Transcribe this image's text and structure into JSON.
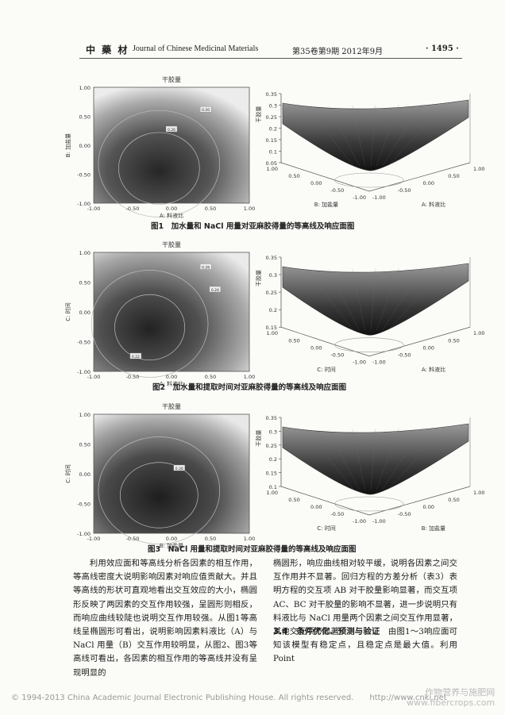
{
  "header": {
    "logo": "中 藥 材",
    "journal": "Journal of Chinese Medicinal Materials",
    "volume": "第35卷第9期 2012年9月",
    "page": "· 1495 ·"
  },
  "figures": [
    {
      "contour_title": "干胶量",
      "contour_xlabel": "A: 料液比",
      "contour_ylabel": "B: 加盐量",
      "contour_xticks": [
        "-1.00",
        "-0.50",
        "0.00",
        "0.50",
        "1.00"
      ],
      "contour_yticks": [
        "1.00",
        "0.50",
        "0.00",
        "-0.50",
        "-1.00"
      ],
      "contour_labels": [
        "0.26",
        "0.20"
      ],
      "surface_zlabel": "干胶量",
      "surface_zticks": [
        "0.35",
        "0.3",
        "0.25",
        "0.2",
        "0.15",
        "0.1",
        "0.05"
      ],
      "surface_left_axis": "B: 加盐量",
      "surface_right_axis": "A: 料液比",
      "surface_left_ticks": [
        "1.00",
        "0.50",
        "0.00",
        "-0.50",
        "-1.00"
      ],
      "surface_right_ticks": [
        "-1.00",
        "-0.50",
        "0.00",
        "0.50",
        "1.00"
      ],
      "caption": "图1　加水量和 NaCl 用量对亚麻胶得量的等高线及响应面图"
    },
    {
      "contour_title": "干胶量",
      "contour_xlabel": "A: 料液比",
      "contour_ylabel": "C: 时间",
      "contour_xticks": [
        "-1.00",
        "-0.50",
        "0.00",
        "0.50",
        "1.00"
      ],
      "contour_yticks": [
        "1.00",
        "0.50",
        "0.00",
        "-0.50",
        "-1.00"
      ],
      "contour_labels": [
        "0.22",
        "0.26",
        "0.24"
      ],
      "surface_zlabel": "干胶量",
      "surface_zticks": [
        "0.35",
        "0.3",
        "0.25",
        "0.2",
        "0.15"
      ],
      "surface_left_axis": "C: 时间",
      "surface_right_axis": "A: 料液比",
      "surface_left_ticks": [
        "1.00",
        "0.50",
        "0.00",
        "-0.50",
        "-1.00"
      ],
      "surface_right_ticks": [
        "-1.00",
        "-0.50",
        "0.00",
        "0.50",
        "1.00"
      ],
      "caption": "图2　加水量和提取时间对亚麻胶得量的等高线及响应面图"
    },
    {
      "contour_title": "干胶量",
      "contour_xlabel": "B: 加盐量",
      "contour_ylabel": "C: 时间",
      "contour_xticks": [
        "-1.00",
        "-0.50",
        "0.00",
        "0.50",
        "1.00"
      ],
      "contour_yticks": [
        "1.00",
        "0.50",
        "0.00",
        "-0.50",
        "-1.00"
      ],
      "contour_labels": [
        "0.26"
      ],
      "surface_zlabel": "干胶量",
      "surface_zticks": [
        "0.35",
        "0.3",
        "0.25",
        "0.2",
        "0.15",
        "0.1"
      ],
      "surface_left_axis": "C: 时间",
      "surface_right_axis": "B: 加盐量",
      "surface_left_ticks": [
        "1.00",
        "0.50",
        "0.00",
        "-0.50",
        "-1.00"
      ],
      "surface_right_ticks": [
        "-1.00",
        "-0.50",
        "0.00",
        "0.50",
        "1.00"
      ],
      "caption": "图3　NaCl 用量和提取时间对亚麻胶得量的等高线及响应面图"
    }
  ],
  "body": {
    "left_column": "利用效应面和等高线分析各因素的相互作用，等高线密度大说明影响因素对响应值贡献大。并且等高线的形状可直观地看出交互效应的大小，椭圆形反映了两因素的交互作用较强，呈圆形则相反，而响应曲线较陡也说明交互作用较强。从图1等高线呈椭圆形可看出，说明影响因素料液比（A）与 NaCl 用量（B）交互作用较明显，从图2、图3等高线可看出，各因素的相互作用的等高线并没有呈现明显的",
    "right_column": "椭圆形，响应曲线相对较平缓，说明各因素之间交互作用并不显著。回归方程的方差分析（表3）表明方程的交互项 AB 对干胶量影响显著，而交互项 AC、BC 对干胶量的影响不显著，进一步说明只有料液比与 NaCl 用量两个因素之间交互作用显著，其他交互项不显著。",
    "section_head": "3.4　条件优化、预测与验证",
    "section_text": "由图1～3响应面可知该模型有稳定点，且稳定点是最大值。利用 Point"
  },
  "footer": {
    "copyright": "© 1994-2013 China Academic Journal Electronic Publishing House. All rights reserved.　　http://www.cnki.net",
    "watermark_line1": "作物营养与施肥网",
    "watermark_line2": "www.fibercrops.com"
  }
}
